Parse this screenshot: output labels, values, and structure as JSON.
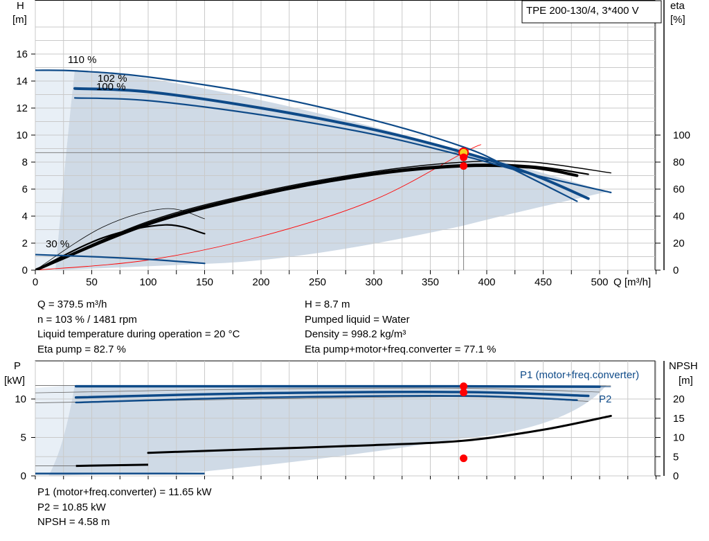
{
  "chart_data": [
    {
      "type": "line",
      "title": "TPE 200-130/4, 3*400 V",
      "xlabel": "Q [m³/h]",
      "ylabel_left": [
        "H",
        "[m]"
      ],
      "ylabel_right": [
        "eta",
        "[%]"
      ],
      "xlim": [
        0,
        550
      ],
      "ylim_left": [
        0,
        18
      ],
      "ylim_right": [
        0,
        100
      ],
      "x_ticks": [
        "0",
        "50",
        "100",
        "150",
        "200",
        "250",
        "300",
        "350",
        "400",
        "450",
        "500"
      ],
      "y_ticks_left": [
        "0",
        "2",
        "4",
        "6",
        "8",
        "10",
        "12",
        "14",
        "16"
      ],
      "y_ticks_right": [
        "0",
        "20",
        "40",
        "60",
        "80",
        "100"
      ],
      "grid": true,
      "curve_labels": [
        "110 %",
        "102 %",
        "100 %",
        "30 %"
      ],
      "operating_point": {
        "Q": 379.5,
        "H": 8.7
      },
      "head_curves": [
        {
          "name": "110 %",
          "x": [
            0,
            37,
            100,
            200,
            300,
            380,
            420,
            480
          ],
          "y": [
            14.8,
            14.75,
            14.3,
            13.0,
            11.1,
            9.1,
            7.6,
            5.1
          ]
        },
        {
          "name": "102 %",
          "x": [
            35,
            100,
            200,
            300,
            380,
            440,
            490
          ],
          "y": [
            13.45,
            13.2,
            12.0,
            10.4,
            8.7,
            7.1,
            5.3
          ]
        },
        {
          "name": "100 %",
          "x": [
            35,
            100,
            200,
            300,
            380,
            440,
            510
          ],
          "y": [
            12.75,
            12.55,
            11.5,
            10.05,
            8.45,
            7.1,
            5.75
          ]
        },
        {
          "name": "30 %",
          "x": [
            0,
            50,
            100,
            150
          ],
          "y": [
            1.15,
            1.0,
            0.8,
            0.5
          ]
        }
      ],
      "eta_curves": [
        {
          "name": "eta 110 %",
          "x": [
            0,
            100,
            200,
            300,
            380,
            440,
            510
          ],
          "y": [
            0,
            36,
            58,
            73,
            80,
            80,
            72
          ]
        },
        {
          "name": "eta 102 %",
          "x": [
            0,
            100,
            200,
            300,
            380,
            440,
            490
          ],
          "y": [
            0,
            35,
            57,
            72,
            78,
            77,
            71
          ]
        },
        {
          "name": "eta 100 %",
          "x": [
            0,
            100,
            200,
            300,
            380,
            440,
            480
          ],
          "y": [
            0,
            34,
            56,
            71,
            77.1,
            76,
            70
          ]
        },
        {
          "name": "eta min thin",
          "x": [
            0,
            60,
            115,
            150
          ],
          "y": [
            0,
            32,
            45.5,
            38
          ]
        },
        {
          "name": "eta min",
          "x": [
            0,
            60,
            115,
            150
          ],
          "y": [
            0,
            24,
            33.5,
            27
          ]
        }
      ],
      "system_curve": {
        "x": [
          0,
          100,
          200,
          300,
          379.5,
          395
        ],
        "y": [
          0,
          0.75,
          2.5,
          5.2,
          8.7,
          9.3
        ]
      }
    },
    {
      "type": "line",
      "ylabel_left": [
        "P",
        "[kW]"
      ],
      "ylabel_right": [
        "NPSH",
        "[m]"
      ],
      "xlim": [
        0,
        550
      ],
      "ylim_left": [
        0,
        12
      ],
      "ylim_right": [
        0,
        25
      ],
      "y_ticks_left": [
        "0",
        "5",
        "10"
      ],
      "y_ticks_right": [
        "0",
        "5",
        "10",
        "15",
        "20"
      ],
      "grid": true,
      "series_labels": [
        "P1 (motor+freq.converter)",
        "P2"
      ],
      "p1_curve": {
        "x": [
          36,
          200,
          380,
          500
        ],
        "y": [
          11.65,
          11.65,
          11.65,
          11.6
        ]
      },
      "p2_curves": [
        {
          "x": [
            36,
            200,
            380,
            490
          ],
          "y": [
            10.2,
            10.75,
            10.9,
            10.4
          ]
        },
        {
          "x": [
            36,
            200,
            380,
            480
          ],
          "y": [
            9.55,
            10.2,
            10.4,
            9.85
          ]
        }
      ],
      "npsh_curve": {
        "x": [
          0,
          100,
          200,
          300,
          380,
          450,
          510
        ],
        "y": [
          2.5,
          3.0,
          3.5,
          4.0,
          4.58,
          6.0,
          7.8
        ]
      },
      "markers": [
        {
          "x": 379.5,
          "y": 11.65
        },
        {
          "x": 379.5,
          "y": 10.85
        },
        {
          "x": 379.5,
          "npsh": 4.58
        }
      ]
    }
  ],
  "info": {
    "left": [
      "Q = 379.5 m³/h",
      "n = 103 % / 1481 rpm",
      "Liquid temperature during operation = 20 °C",
      "Eta pump = 82.7 %"
    ],
    "right": [
      "H = 8.7 m",
      "Pumped liquid = Water",
      "Density = 998.2 kg/m³",
      "Eta pump+motor+freq.converter = 77.1 %"
    ],
    "bottom": [
      "P1 (motor+freq.converter) = 11.65 kW",
      "P2 = 10.85 kW",
      "NPSH = 4.58 m"
    ]
  },
  "colors": {
    "envelope": "#cfdae6",
    "envelope_light": "#e8eff6",
    "pump_curve": "#0e4a88",
    "eta_curve": "#000000",
    "system_curve": "#ff0000",
    "marker": "#ff0000",
    "marker_highlight": "#f5d020"
  }
}
